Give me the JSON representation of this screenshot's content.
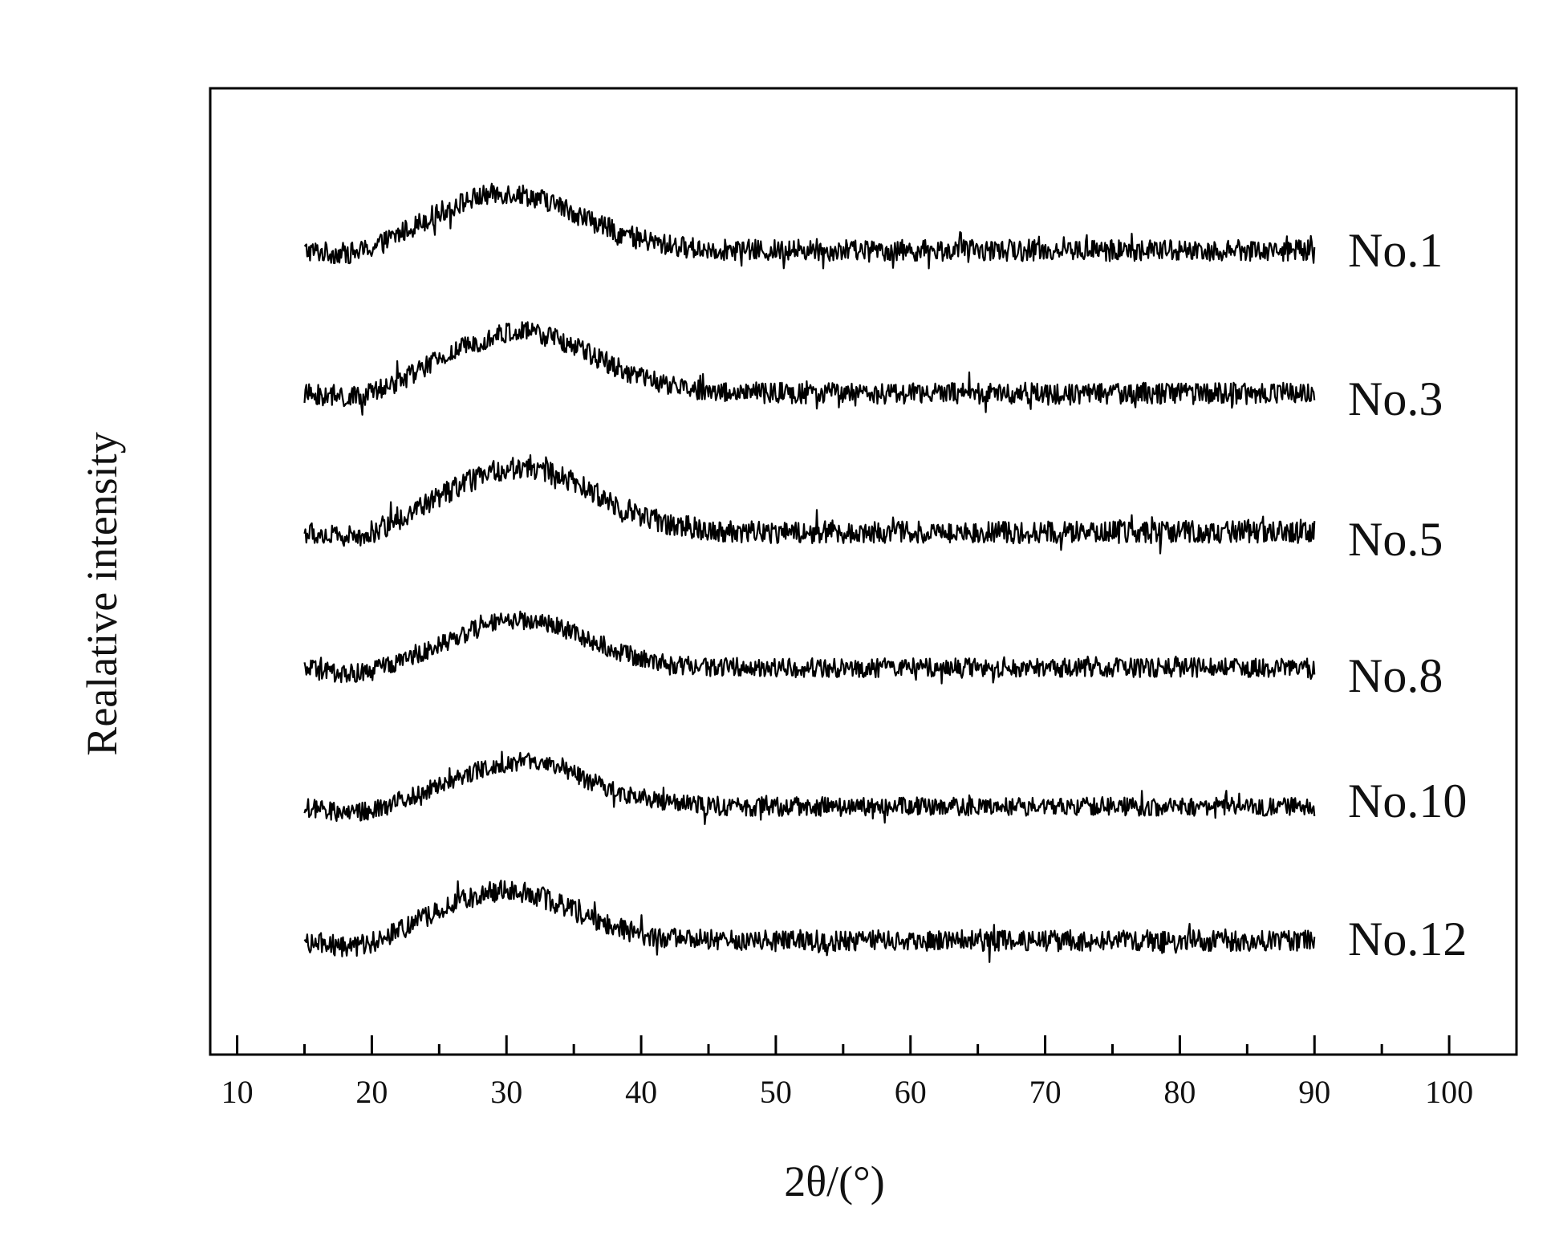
{
  "chart_data": {
    "type": "line",
    "xlabel": "2θ/(°)",
    "ylabel": "Realative intensity",
    "xlim": [
      8,
      105
    ],
    "x_ticks": [
      10,
      20,
      30,
      40,
      50,
      60,
      70,
      80,
      90,
      100
    ],
    "x_minor_ticks": [
      15,
      25,
      35,
      45,
      55,
      65,
      75,
      85,
      95
    ],
    "x_range": [
      15,
      90
    ],
    "grid": false,
    "legend": "labels at right end of each curve",
    "line_color": "#000000",
    "series": [
      {
        "name": "No.1",
        "baseline": 0.0,
        "hump_height": 0.75,
        "hump_center": 30,
        "hump_width": 5.5
      },
      {
        "name": "No.3",
        "baseline": 0.0,
        "hump_height": 0.8,
        "hump_center": 31,
        "hump_width": 5.5
      },
      {
        "name": "No.5",
        "baseline": 0.0,
        "hump_height": 0.8,
        "hump_center": 31,
        "hump_width": 5.5
      },
      {
        "name": "No.8",
        "baseline": 0.0,
        "hump_height": 0.7,
        "hump_center": 31,
        "hump_width": 5.0
      },
      {
        "name": "No.10",
        "baseline": 0.0,
        "hump_height": 0.65,
        "hump_center": 31,
        "hump_width": 5.0
      },
      {
        "name": "No.12",
        "baseline": 0.0,
        "hump_height": 0.65,
        "hump_center": 30,
        "hump_width": 5.0
      }
    ]
  }
}
